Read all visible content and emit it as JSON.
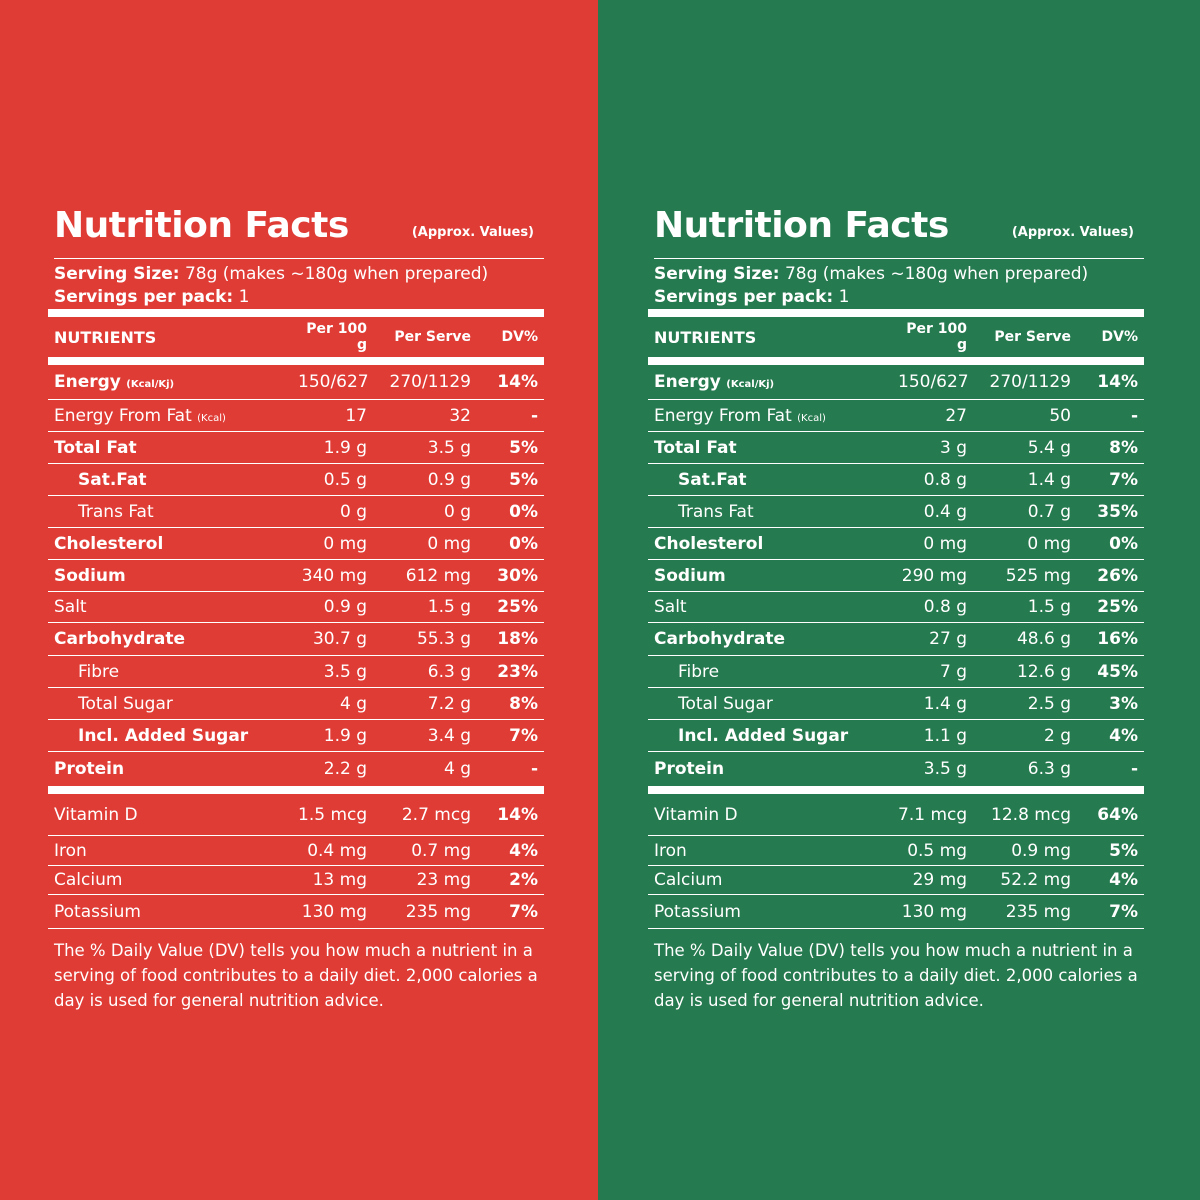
{
  "colors": {
    "left_panel": "#E03C36",
    "right_panel": "#267A4F",
    "text": "#FFFFFF"
  },
  "panels": [
    {
      "title": "Nutrition Facts",
      "approx": "(Approx. Values)",
      "serving_size_label": "Serving Size:",
      "serving_size_value": "78g (makes ~180g when prepared)",
      "servings_label": "Servings per pack:",
      "servings_value": "1",
      "headers": [
        "NUTRIENTS",
        "Per 100 g",
        "Per Serve",
        "DV%"
      ],
      "rows": [
        {
          "name": "Energy",
          "unit": "(Kcal/Kj)",
          "per100": "150/627",
          "serve": "270/1129",
          "dv": "14%"
        },
        {
          "name": "Energy From Fat",
          "unit": "(Kcal)",
          "per100": "17",
          "serve": "32",
          "dv": "-"
        },
        {
          "name": "Total Fat",
          "per100": "1.9 g",
          "serve": "3.5 g",
          "dv": "5%"
        },
        {
          "name": "Sat.Fat",
          "per100": "0.5 g",
          "serve": "0.9 g",
          "dv": "5%"
        },
        {
          "name": "Trans Fat",
          "per100": "0 g",
          "serve": "0 g",
          "dv": "0%"
        },
        {
          "name": "Cholesterol",
          "per100": "0 mg",
          "serve": "0 mg",
          "dv": "0%"
        },
        {
          "name": "Sodium",
          "per100": "340 mg",
          "serve": "612 mg",
          "dv": "30%"
        },
        {
          "name": "Salt",
          "per100": "0.9 g",
          "serve": "1.5 g",
          "dv": "25%"
        },
        {
          "name": "Carbohydrate",
          "per100": "30.7 g",
          "serve": "55.3 g",
          "dv": "18%"
        },
        {
          "name": "Fibre",
          "per100": "3.5 g",
          "serve": "6.3 g",
          "dv": "23%"
        },
        {
          "name": "Total Sugar",
          "per100": "4 g",
          "serve": "7.2 g",
          "dv": "8%"
        },
        {
          "name": "Incl. Added Sugar",
          "per100": "1.9 g",
          "serve": "3.4 g",
          "dv": "7%"
        },
        {
          "name": "Protein",
          "per100": "2.2 g",
          "serve": "4 g",
          "dv": "-"
        }
      ],
      "minerals": [
        {
          "name": "Vitamin D",
          "per100": "1.5 mcg",
          "serve": "2.7 mcg",
          "dv": "14%"
        },
        {
          "name": "Iron",
          "per100": "0.4 mg",
          "serve": "0.7 mg",
          "dv": "4%"
        },
        {
          "name": "Calcium",
          "per100": "13 mg",
          "serve": "23 mg",
          "dv": "2%"
        },
        {
          "name": "Potassium",
          "per100": "130 mg",
          "serve": "235 mg",
          "dv": "7%"
        }
      ],
      "footnote": "The % Daily Value (DV) tells you how much a nutrient in a serving of food contributes to a daily diet. 2,000 calories a day is used for general nutrition advice."
    },
    {
      "title": "Nutrition Facts",
      "approx": "(Approx. Values)",
      "serving_size_label": "Serving Size:",
      "serving_size_value": "78g (makes ~180g when prepared)",
      "servings_label": "Servings per pack:",
      "servings_value": "1",
      "headers": [
        "NUTRIENTS",
        "Per 100 g",
        "Per Serve",
        "DV%"
      ],
      "rows": [
        {
          "name": "Energy",
          "unit": "(Kcal/Kj)",
          "per100": "150/627",
          "serve": "270/1129",
          "dv": "14%"
        },
        {
          "name": "Energy From Fat",
          "unit": "(Kcal)",
          "per100": "27",
          "serve": "50",
          "dv": "-"
        },
        {
          "name": "Total Fat",
          "per100": "3 g",
          "serve": "5.4 g",
          "dv": "8%"
        },
        {
          "name": "Sat.Fat",
          "per100": "0.8 g",
          "serve": "1.4 g",
          "dv": "7%"
        },
        {
          "name": "Trans Fat",
          "per100": "0.4 g",
          "serve": "0.7 g",
          "dv": "35%"
        },
        {
          "name": "Cholesterol",
          "per100": "0 mg",
          "serve": "0 mg",
          "dv": "0%"
        },
        {
          "name": "Sodium",
          "per100": "290 mg",
          "serve": "525 mg",
          "dv": "26%"
        },
        {
          "name": "Salt",
          "per100": "0.8 g",
          "serve": "1.5 g",
          "dv": "25%"
        },
        {
          "name": "Carbohydrate",
          "per100": "27 g",
          "serve": "48.6 g",
          "dv": "16%"
        },
        {
          "name": "Fibre",
          "per100": "7 g",
          "serve": "12.6 g",
          "dv": "45%"
        },
        {
          "name": "Total Sugar",
          "per100": "1.4 g",
          "serve": "2.5 g",
          "dv": "3%"
        },
        {
          "name": "Incl. Added Sugar",
          "per100": "1.1 g",
          "serve": "2 g",
          "dv": "4%"
        },
        {
          "name": "Protein",
          "per100": "3.5 g",
          "serve": "6.3 g",
          "dv": "-"
        }
      ],
      "minerals": [
        {
          "name": "Vitamin D",
          "per100": "7.1 mcg",
          "serve": "12.8 mcg",
          "dv": "64%"
        },
        {
          "name": "Iron",
          "per100": "0.5 mg",
          "serve": "0.9 mg",
          "dv": "5%"
        },
        {
          "name": "Calcium",
          "per100": "29 mg",
          "serve": "52.2 mg",
          "dv": "4%"
        },
        {
          "name": "Potassium",
          "per100": "130 mg",
          "serve": "235 mg",
          "dv": "7%"
        }
      ],
      "footnote": "The % Daily Value (DV) tells you how much a nutrient in a serving of food contributes to a daily diet. 2,000 calories a day is used for general nutrition advice."
    }
  ]
}
